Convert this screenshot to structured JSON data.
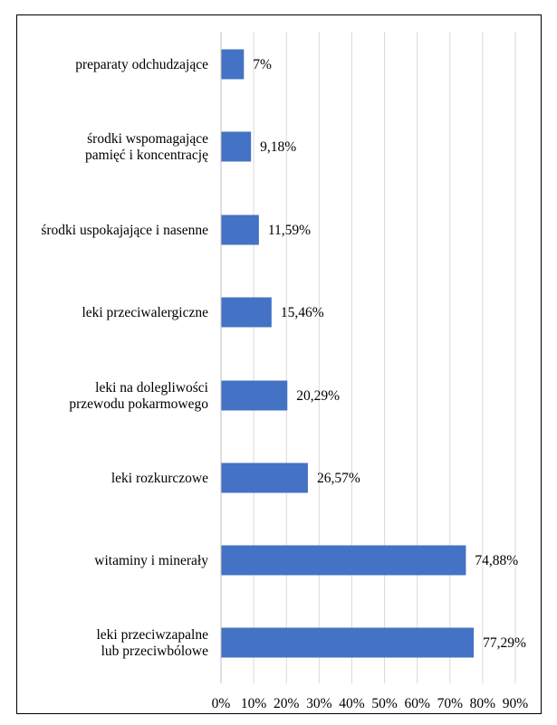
{
  "chart_data": {
    "type": "bar",
    "orientation": "horizontal",
    "categories": [
      [
        "preparaty odchudzające"
      ],
      [
        "środki wspomagające",
        "pamięć i koncentrację"
      ],
      [
        "środki uspokajające i nasenne"
      ],
      [
        "leki przeciwalergiczne"
      ],
      [
        "leki na dolegliwości",
        "przewodu pokarmowego"
      ],
      [
        "leki rozkurczowe"
      ],
      [
        "witaminy i minerały"
      ],
      [
        "leki przeciwzapalne",
        "lub przeciwbólowe"
      ]
    ],
    "values": [
      7,
      9.18,
      11.59,
      15.46,
      20.29,
      26.57,
      74.88,
      77.29
    ],
    "value_labels": [
      "7%",
      "9,18%",
      "11,59%",
      "15,46%",
      "20,29%",
      "26,57%",
      "74,88%",
      "77,29%"
    ],
    "xlim": [
      0,
      90
    ],
    "x_ticks": [
      "0%",
      "10%",
      "20%",
      "30%",
      "40%",
      "50%",
      "60%",
      "70%",
      "80%",
      "90%"
    ],
    "grid": "vertical",
    "bar_color": "#4472c4",
    "grid_color": "#d9d9d9"
  }
}
